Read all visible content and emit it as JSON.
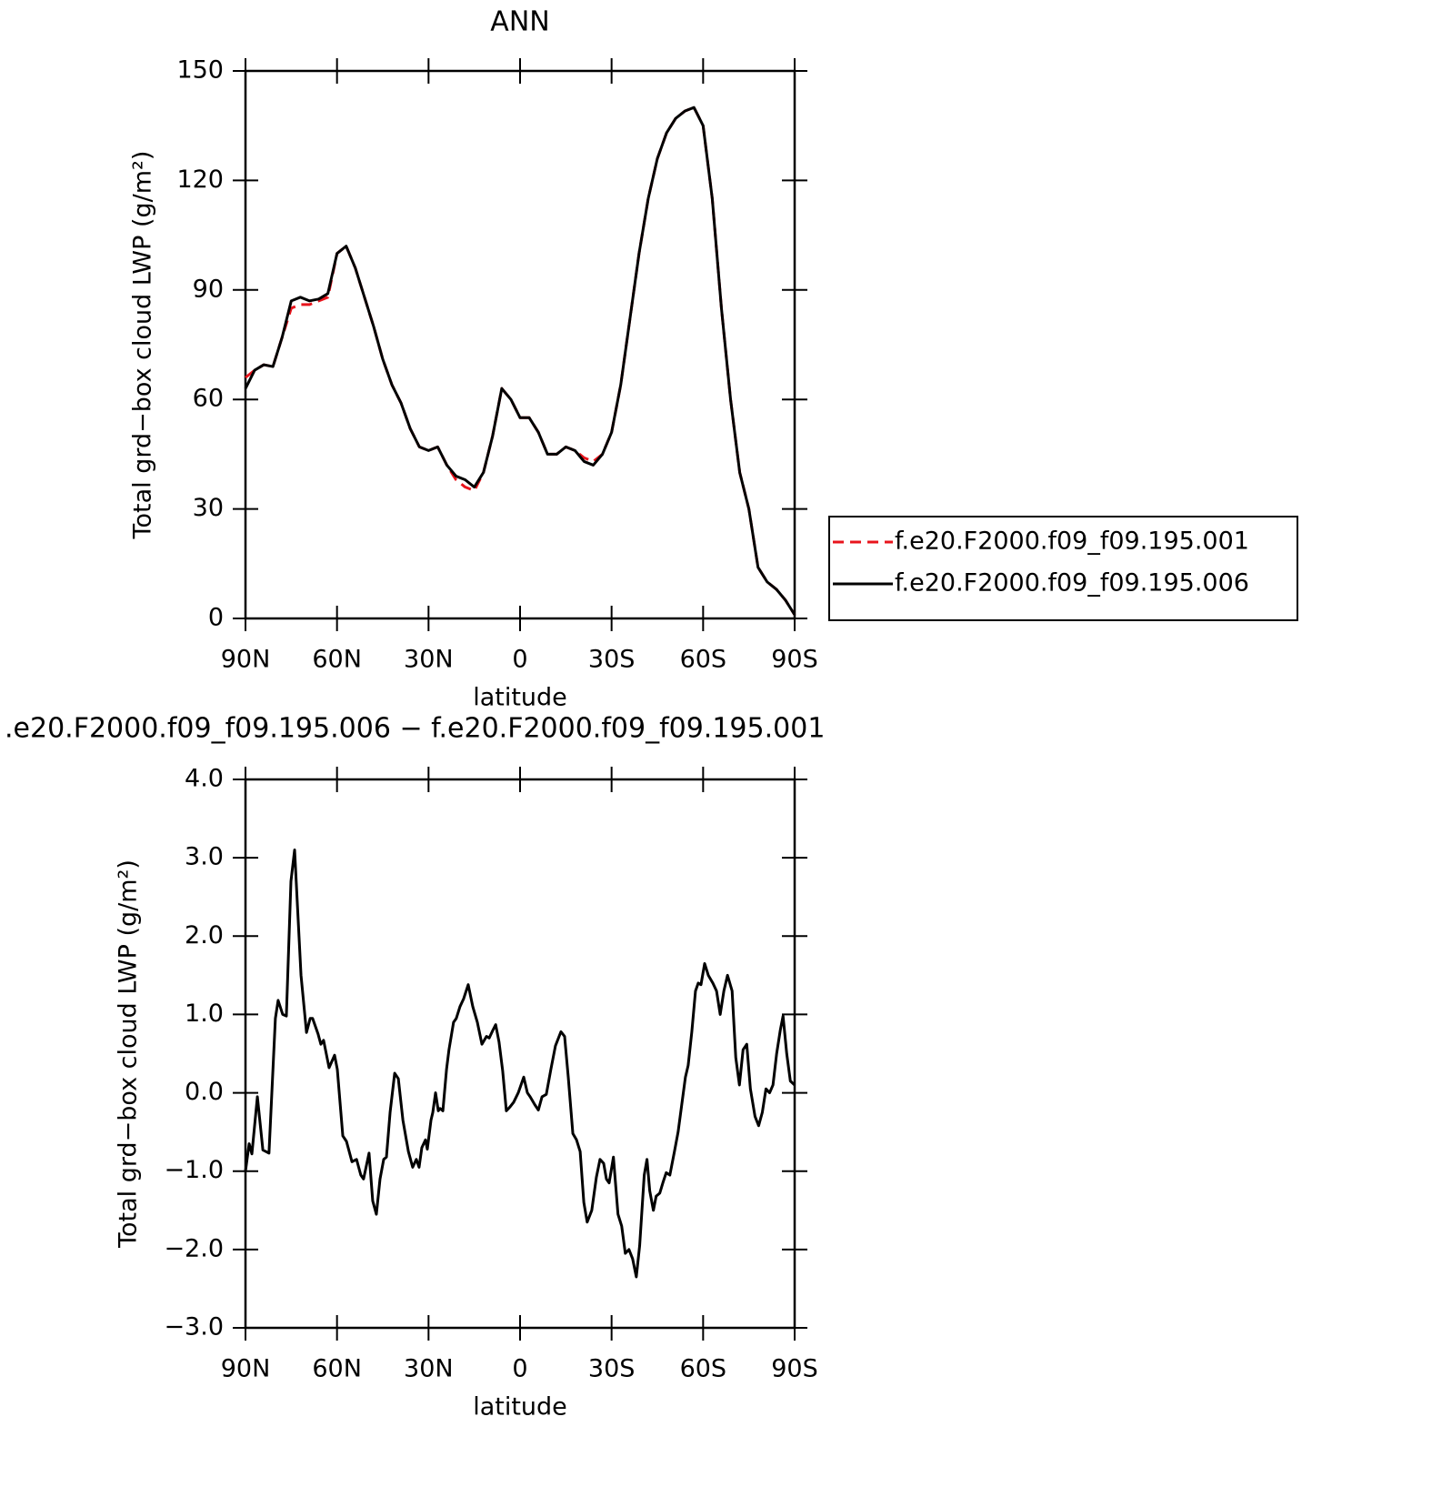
{
  "chart_data": [
    {
      "type": "line",
      "title": "ANN",
      "xlabel": "latitude",
      "ylabel": "Total grd−box cloud LWP (g/m²)",
      "x": [
        90,
        87,
        84,
        81,
        78,
        75,
        72,
        69,
        66,
        63,
        60,
        57,
        54,
        51,
        48,
        45,
        42,
        39,
        36,
        33,
        30,
        27,
        24,
        21,
        18,
        15,
        12,
        9,
        6,
        3,
        0,
        -3,
        -6,
        -9,
        -12,
        -15,
        -18,
        -21,
        -24,
        -27,
        -30,
        -33,
        -36,
        -39,
        -42,
        -45,
        -48,
        -51,
        -54,
        -57,
        -60,
        -63,
        -66,
        -69,
        -72,
        -75,
        -78,
        -81,
        -84,
        -87,
        -90
      ],
      "series": [
        {
          "name": "f.e20.F2000.f09_f09.195.001",
          "color": "#e8141c",
          "line_style": "dashed",
          "values": [
            66,
            68,
            69.5,
            69,
            77,
            85,
            86,
            86,
            87,
            88,
            100,
            102,
            96,
            88,
            80,
            71,
            64,
            59,
            52,
            47,
            46,
            47,
            42,
            38,
            36,
            35,
            40,
            50,
            63,
            60,
            55,
            55,
            51,
            45,
            45,
            47,
            46,
            44,
            43,
            45,
            51,
            64,
            82,
            100,
            115,
            126,
            133,
            137,
            139,
            140,
            135,
            115,
            85,
            60,
            40,
            30,
            14,
            10,
            8,
            5,
            1
          ]
        },
        {
          "name": "f.e20.F2000.f09_f09.195.006",
          "color": "#000000",
          "line_style": "solid",
          "values": [
            63,
            68,
            69.5,
            69,
            77,
            87,
            88,
            87,
            87.5,
            89,
            100,
            102,
            96,
            88,
            80,
            71,
            64,
            59,
            52,
            47,
            46,
            47,
            42,
            39,
            38,
            36,
            40,
            50,
            63,
            60,
            55,
            55,
            51,
            45,
            45,
            47,
            46,
            43,
            42,
            45,
            51,
            64,
            82,
            100,
            115,
            126,
            133,
            137,
            139,
            140,
            135,
            115,
            85,
            60,
            40,
            30,
            14,
            10,
            8,
            5,
            1
          ]
        }
      ],
      "xlim": [
        90,
        -90
      ],
      "xticks": [
        {
          "value": 90,
          "label": "90N"
        },
        {
          "value": 60,
          "label": "60N"
        },
        {
          "value": 30,
          "label": "30N"
        },
        0,
        {
          "value": -30,
          "label": "30S"
        },
        {
          "value": -60,
          "label": "60S"
        },
        {
          "value": -90,
          "label": "90S"
        }
      ],
      "ylim": [
        0,
        150
      ],
      "yticks": [
        0,
        30,
        60,
        90,
        120,
        150
      ],
      "legend": "right"
    },
    {
      "type": "line",
      "title": ".e20.F2000.f09_f09.195.006 − f.e20.F2000.f09_f09.195.001",
      "xlabel": "latitude",
      "ylabel": "Total grd−box cloud LWP (g/m²)",
      "color": "#000000",
      "x": [
        90,
        88.8,
        87.9,
        86.1,
        84.3,
        82.3,
        80.2,
        79.3,
        77.8,
        76.6,
        75.1,
        73.9,
        71.8,
        70,
        68.8,
        68,
        66.2,
        65.3,
        64.4,
        62.6,
        60.8,
        59.9,
        58.1,
        56.9,
        55.1,
        53.6,
        52.2,
        51.3,
        49.5,
        48.3,
        47.1,
        45.9,
        44.7,
        43.8,
        42.6,
        41.1,
        39.9,
        38.4,
        36.6,
        35.2,
        34,
        33.1,
        32.2,
        31,
        30.4,
        29.2,
        28.6,
        27.7,
        26.8,
        26.2,
        25.3,
        24.1,
        23.3,
        21.8,
        20.9,
        19.7,
        18.5,
        17,
        15.5,
        14,
        12.5,
        11,
        10.1,
        8.9,
        8,
        6.9,
        5.7,
        4.5,
        3.3,
        2.1,
        0.6,
        -1.2,
        -2.4,
        -3.3,
        -4.8,
        -6,
        -7.2,
        -8.6,
        -10.1,
        -11.6,
        -13.4,
        -14.6,
        -15.8,
        -17.3,
        -18.5,
        -19.7,
        -20.9,
        -22,
        -23.5,
        -25,
        -26.2,
        -27.4,
        -28.3,
        -29.2,
        -30.6,
        -32.1,
        -33.3,
        -34.5,
        -35.7,
        -36.9,
        -38.1,
        -39.2,
        -40.7,
        -41.6,
        -42.5,
        -43.7,
        -44.6,
        -45.8,
        -46.8,
        -47.9,
        -49.1,
        -50.6,
        -51.8,
        -53,
        -54.2,
        -55.1,
        -56.3,
        -57.5,
        -58.4,
        -59.3,
        -60.5,
        -61.7,
        -63.2,
        -64.4,
        -65.6,
        -66.8,
        -68,
        -69.5,
        -70.7,
        -71.9,
        -73.1,
        -74.3,
        -75.5,
        -77,
        -78.2,
        -79.4,
        -80.6,
        -81.8,
        -82.9,
        -84.1,
        -85.3,
        -86.2,
        -87.4,
        -88.6,
        -90
      ],
      "values": [
        -1,
        -0.65,
        -0.78,
        -0.05,
        -0.73,
        -0.77,
        0.95,
        1.18,
        1,
        0.98,
        2.7,
        3.1,
        1.5,
        0.77,
        0.95,
        0.95,
        0.75,
        0.62,
        0.67,
        0.32,
        0.48,
        0.3,
        -0.55,
        -0.62,
        -0.88,
        -0.85,
        -1.05,
        -1.1,
        -0.77,
        -1.38,
        -1.55,
        -1.1,
        -0.85,
        -0.82,
        -0.25,
        0.25,
        0.18,
        -0.35,
        -0.75,
        -0.95,
        -0.85,
        -0.95,
        -0.7,
        -0.6,
        -0.72,
        -0.35,
        -0.25,
        0,
        -0.23,
        -0.2,
        -0.23,
        0.3,
        0.55,
        0.9,
        0.95,
        1.1,
        1.2,
        1.38,
        1.1,
        0.9,
        0.62,
        0.72,
        0.7,
        0.8,
        0.87,
        0.65,
        0.28,
        -0.23,
        -0.18,
        -0.12,
        0,
        0.2,
        0,
        -0.05,
        -0.15,
        -0.22,
        -0.05,
        -0.02,
        0.3,
        0.6,
        0.78,
        0.72,
        0.2,
        -0.52,
        -0.6,
        -0.75,
        -1.4,
        -1.65,
        -1.5,
        -1.08,
        -0.85,
        -0.9,
        -1.1,
        -1.15,
        -0.82,
        -1.55,
        -1.7,
        -2.05,
        -2,
        -2.12,
        -2.35,
        -1.95,
        -1.05,
        -0.85,
        -1.25,
        -1.5,
        -1.32,
        -1.28,
        -1.15,
        -1.02,
        -1.05,
        -0.75,
        -0.5,
        -0.15,
        0.2,
        0.35,
        0.78,
        1.3,
        1.4,
        1.38,
        1.65,
        1.5,
        1.4,
        1.3,
        1,
        1.3,
        1.5,
        1.3,
        0.45,
        0.1,
        0.55,
        0.62,
        0.05,
        -0.3,
        -0.42,
        -0.25,
        0.05,
        0,
        0.1,
        0.5,
        0.8,
        0.98,
        0.5,
        0.15,
        0.1
      ],
      "xlim": [
        90,
        -90
      ],
      "xticks": [
        {
          "value": 90,
          "label": "90N"
        },
        {
          "value": 60,
          "label": "60N"
        },
        {
          "value": 30,
          "label": "30N"
        },
        0,
        {
          "value": -30,
          "label": "30S"
        },
        {
          "value": -60,
          "label": "60S"
        },
        {
          "value": -90,
          "label": "90S"
        }
      ],
      "ylim": [
        -3,
        4
      ],
      "yticks": [
        {
          "value": -3,
          "label": "−3.0"
        },
        {
          "value": -2,
          "label": "−2.0"
        },
        {
          "value": -1,
          "label": "−1.0"
        },
        {
          "value": 0,
          "label": "0.0"
        },
        {
          "value": 1,
          "label": "1.0"
        },
        {
          "value": 2,
          "label": "2.0"
        },
        {
          "value": 3,
          "label": "3.0"
        },
        {
          "value": 4,
          "label": "4.0"
        }
      ]
    }
  ]
}
